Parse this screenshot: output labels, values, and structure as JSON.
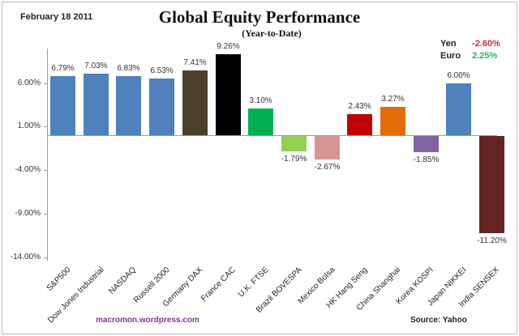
{
  "header": {
    "date": "February 18 2011",
    "title": "Global Equity Performance",
    "subtitle": "(Year-to-Date)"
  },
  "fx": [
    {
      "label": "Yen",
      "value": "-2.60%",
      "color": "#c0304a"
    },
    {
      "label": "Euro",
      "value": "2.25%",
      "color": "#2bb36b"
    }
  ],
  "footer": {
    "site": "macromon.wordpress.com",
    "source": "Source:  Yahoo"
  },
  "chart_data": {
    "type": "bar",
    "title": "Global Equity Performance",
    "subtitle": "(Year-to-Date)",
    "xlabel": "",
    "ylabel": "",
    "ylim": [
      -14,
      11
    ],
    "yticks": [
      "6.00%",
      "1.00%",
      "-4.00%",
      "-9.00%",
      "-14.00%"
    ],
    "ytick_values": [
      6,
      1,
      -4,
      -9,
      -14
    ],
    "grid": false,
    "legend": null,
    "categories": [
      "S&P500",
      "Dow Jones Industrial",
      "NASDAQ",
      "Russell 2000",
      "Germany DAX",
      "France CAC",
      "U.K. FTSE",
      "Brazil BOVESPA",
      "Mexico Bolsa",
      "HK Hang Seng",
      "China Shanghai",
      "Korea KOSPI",
      "Japan NIKKEI",
      "India SENSEX"
    ],
    "values": [
      6.79,
      7.03,
      6.83,
      6.53,
      7.41,
      9.26,
      3.1,
      -1.79,
      -2.67,
      2.43,
      3.27,
      -1.85,
      6.0,
      -11.2
    ],
    "value_labels": [
      "6.79%",
      "7.03%",
      "6.83%",
      "6.53%",
      "7.41%",
      "9.26%",
      "3.10%",
      "-1.79%",
      "-2.67%",
      "2.43%",
      "3.27%",
      "-1.85%",
      "6.00%",
      "-11.20%"
    ],
    "colors": [
      "#4f81bd",
      "#4f81bd",
      "#4f81bd",
      "#4f81bd",
      "#4a4128",
      "#000000",
      "#00b050",
      "#92d050",
      "#d99594",
      "#c00000",
      "#e36c09",
      "#8064a2",
      "#4f81bd",
      "#632423"
    ],
    "annotations": [
      "Yen -2.60%",
      "Euro 2.25%",
      "February 18 2011",
      "macromon.wordpress.com",
      "Source: Yahoo"
    ]
  }
}
